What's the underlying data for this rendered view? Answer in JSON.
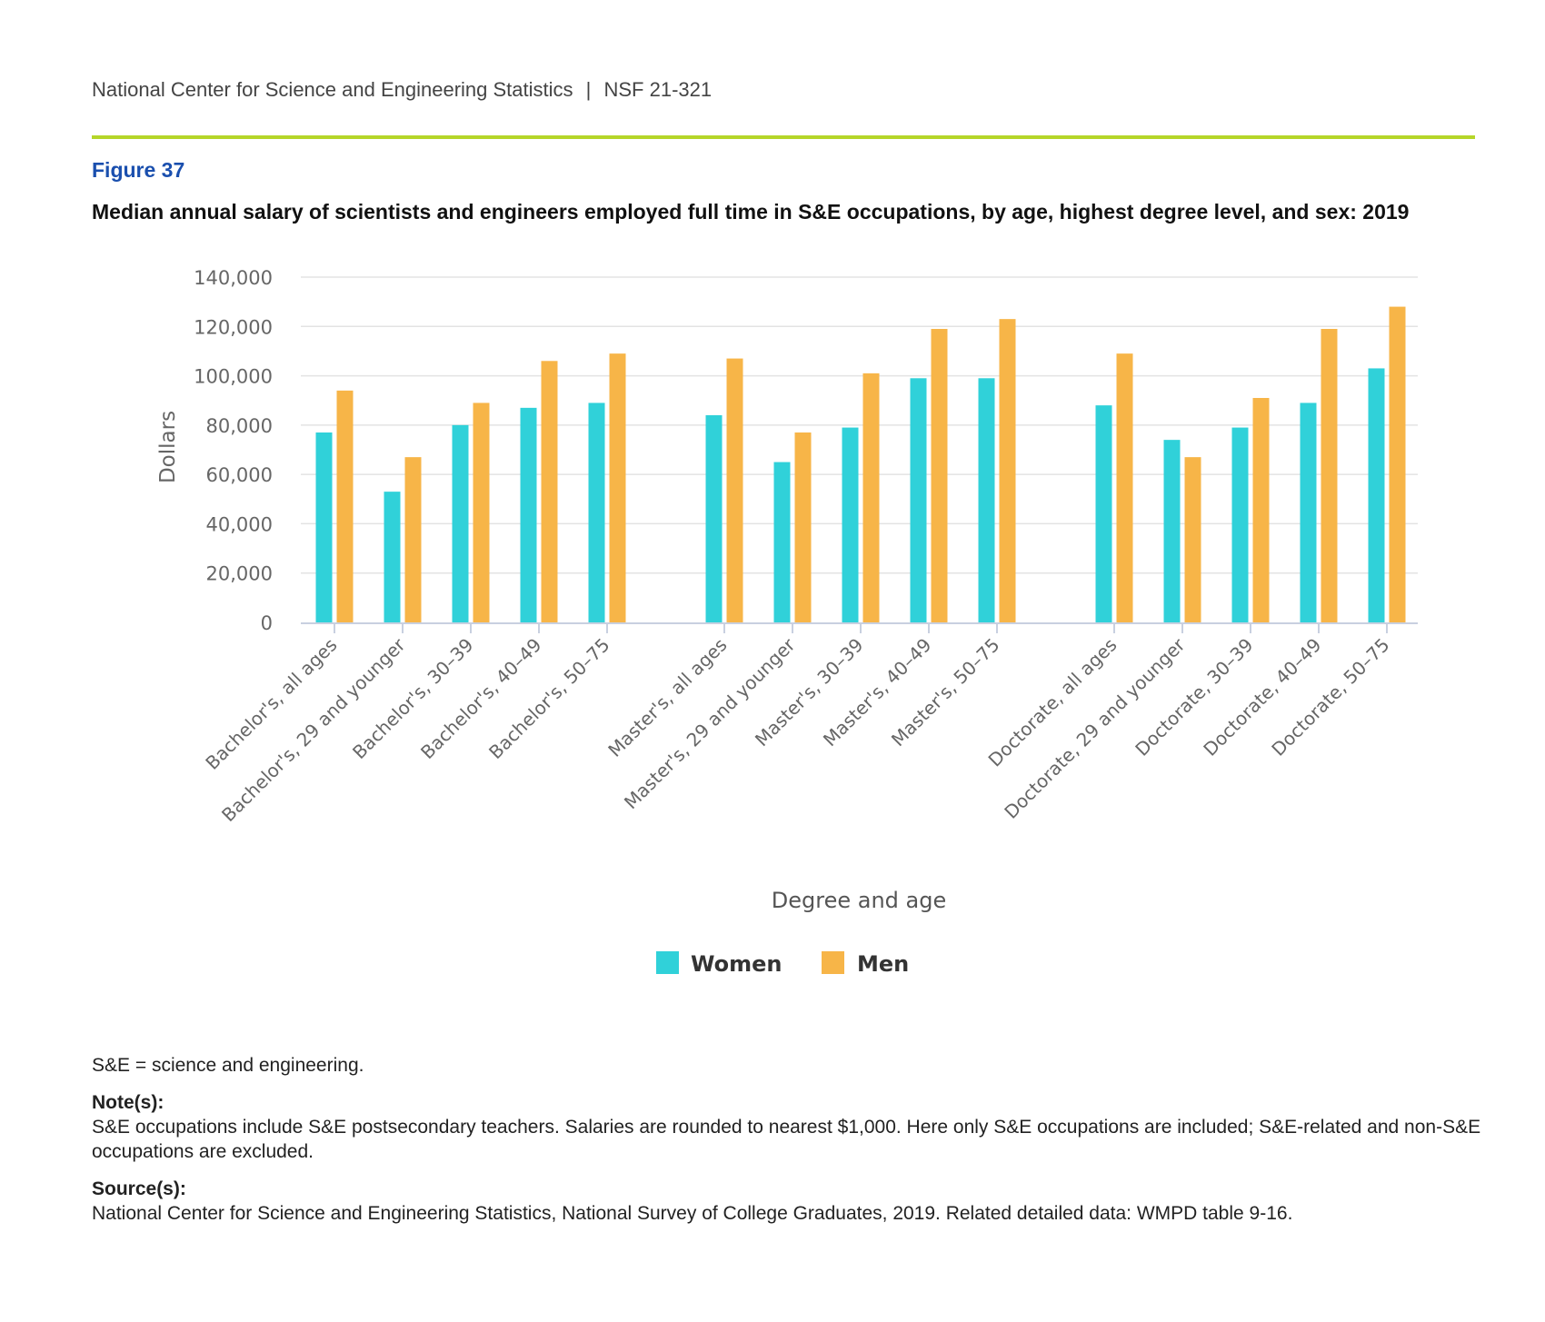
{
  "header": {
    "org": "National Center for Science and Engineering Statistics",
    "separator": "|",
    "report_id": "NSF 21-321"
  },
  "figure": {
    "label": "Figure 37",
    "title": "Median annual salary of scientists and engineers employed full time in S&E occupations, by age, highest degree level, and sex: 2019"
  },
  "colors": {
    "women": "#30d1d9",
    "men": "#f7b548",
    "grid": "#e3e3e3",
    "axis": "#c8d0e0",
    "tick_text": "#666666"
  },
  "chart_data": {
    "type": "bar",
    "title": "Median annual salary of scientists and engineers employed full time in S&E occupations, by age, highest degree level, and sex: 2019",
    "xlabel": "Degree and age",
    "ylabel": "Dollars",
    "ylim": [
      0,
      140000
    ],
    "yticks": [
      0,
      20000,
      40000,
      60000,
      80000,
      100000,
      120000,
      140000
    ],
    "ytick_labels": [
      "0",
      "20,000",
      "40,000",
      "60,000",
      "80,000",
      "100,000",
      "120,000",
      "140,000"
    ],
    "grid": true,
    "legend_position": "bottom-center",
    "groups": [
      {
        "name": "Bachelor's",
        "categories": [
          "Bachelor's, all ages",
          "Bachelor's, 29 and younger",
          "Bachelor's, 30–39",
          "Bachelor's, 40–49",
          "Bachelor's, 50–75"
        ]
      },
      {
        "name": "Master's",
        "categories": [
          "Master's, all ages",
          "Master's, 29 and younger",
          "Master's, 30–39",
          "Master's, 40–49",
          "Master's, 50–75"
        ]
      },
      {
        "name": "Doctorate",
        "categories": [
          "Doctorate, all ages",
          "Doctorate, 29 and younger",
          "Doctorate, 30–39",
          "Doctorate, 40–49",
          "Doctorate, 50–75"
        ]
      }
    ],
    "series": [
      {
        "name": "Women",
        "values": [
          77000,
          53000,
          80000,
          87000,
          89000,
          84000,
          65000,
          79000,
          99000,
          99000,
          88000,
          74000,
          79000,
          89000,
          103000
        ]
      },
      {
        "name": "Men",
        "values": [
          94000,
          67000,
          89000,
          106000,
          109000,
          107000,
          77000,
          101000,
          119000,
          123000,
          109000,
          67000,
          91000,
          119000,
          128000
        ]
      }
    ]
  },
  "footnotes": {
    "abbrev": "S&E = science and engineering.",
    "notes_heading": "Note(s):",
    "notes_text": "S&E occupations include S&E postsecondary teachers. Salaries are rounded to nearest $1,000. Here only S&E occupations are included; S&E-related and non-S&E occupations are excluded.",
    "source_heading": "Source(s):",
    "source_text": "National Center for Science and Engineering Statistics, National Survey of College Graduates, 2019. Related detailed data: WMPD table 9-16."
  }
}
